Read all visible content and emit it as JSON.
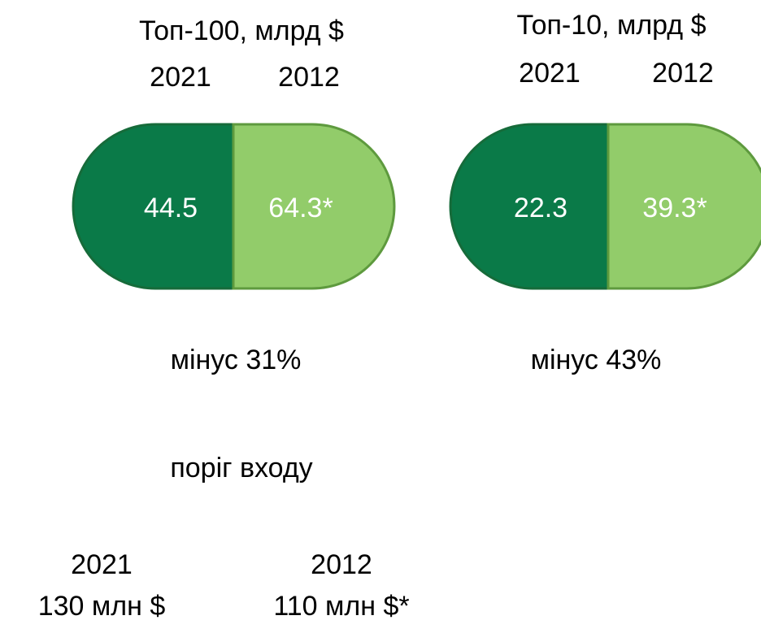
{
  "top100": {
    "title": "Топ-100, млрд $",
    "year_a": "2021",
    "year_b": "2012",
    "value_a": "44.5",
    "value_b": "64.3*",
    "change": "мінус 31%"
  },
  "top10": {
    "title": "Топ-10, млрд $",
    "year_a": "2021",
    "year_b": "2012",
    "value_a": "22.3",
    "value_b": "39.3*",
    "change": "мінус 43%"
  },
  "threshold": {
    "title": "поріг входу",
    "year_a": "2021",
    "value_a": "130 млн $",
    "year_b": "2012",
    "value_b": "110 млн $*"
  }
}
